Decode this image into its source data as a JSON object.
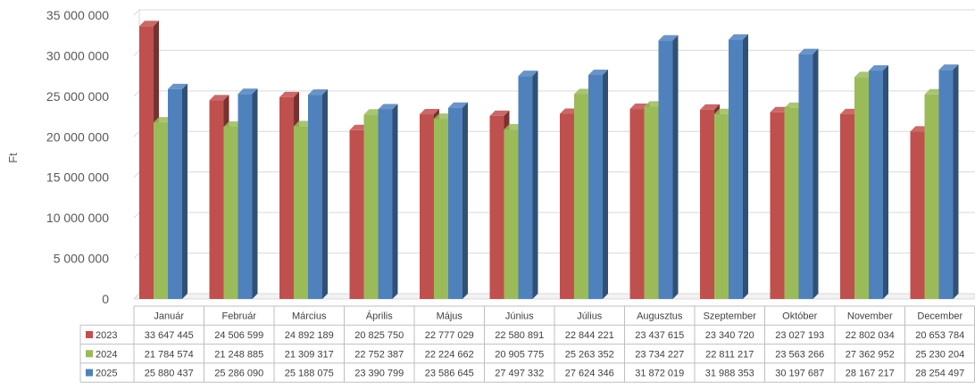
{
  "chart_data": {
    "type": "bar",
    "ylabel": "Ft",
    "ylim": [
      0,
      35000000
    ],
    "y_ticks": [
      "35 000 000",
      "30 000 000",
      "25 000 000",
      "20 000 000",
      "15 000 000",
      "10 000 000",
      "5 000 000",
      "0"
    ],
    "grid": true,
    "legend": "data-table",
    "categories": [
      "Január",
      "Február",
      "Március",
      "Április",
      "Május",
      "Június",
      "Július",
      "Augusztus",
      "Szeptember",
      "Október",
      "November",
      "December"
    ],
    "series": [
      {
        "name": "2023",
        "color": "#c0504d",
        "values": [
          33647445,
          24506599,
          24892189,
          20825750,
          22777029,
          22580891,
          22844221,
          23437615,
          23340720,
          23027193,
          22802034,
          20653784
        ],
        "labels": [
          "33 647 445",
          "24 506 599",
          "24 892 189",
          "20 825 750",
          "22 777 029",
          "22 580 891",
          "22 844 221",
          "23 437 615",
          "23 340 720",
          "23 027 193",
          "22 802 034",
          "20 653 784"
        ]
      },
      {
        "name": "2024",
        "color": "#9bbb59",
        "values": [
          21784574,
          21248885,
          21309317,
          22752387,
          22224662,
          20905775,
          25263352,
          23734227,
          22811217,
          23563266,
          27362952,
          25230204
        ],
        "labels": [
          "21 784 574",
          "21 248 885",
          "21 309 317",
          "22 752 387",
          "22 224 662",
          "20 905 775",
          "25 263 352",
          "23 734 227",
          "22 811 217",
          "23 563 266",
          "27 362 952",
          "25 230 204"
        ]
      },
      {
        "name": "2025",
        "color": "#4f81bd",
        "values": [
          25880437,
          25286090,
          25188075,
          23390799,
          23586645,
          27497332,
          27624346,
          31872019,
          31988353,
          30197687,
          28167217,
          28254497
        ],
        "labels": [
          "25 880 437",
          "25 286 090",
          "25 188 075",
          "23 390 799",
          "23 586 645",
          "27 497 332",
          "27 624 346",
          "31 872 019",
          "31 988 353",
          "30 197 687",
          "28 167 217",
          "28 254 497"
        ]
      }
    ]
  }
}
